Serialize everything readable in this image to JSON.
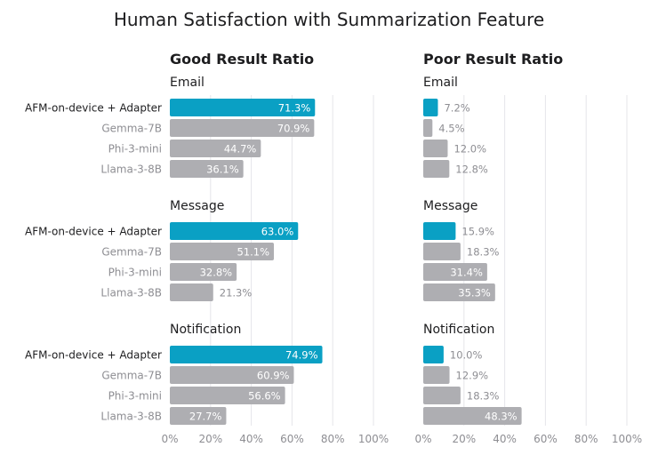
{
  "chart_data": {
    "type": "bar",
    "title": "Human Satisfaction with Summarization Feature",
    "categories": [
      "AFM-on-device + Adapter",
      "Gemma-7B",
      "Phi-3-mini",
      "Llama-3-8B"
    ],
    "highlight_category": "AFM-on-device + Adapter",
    "highlight_color": "#0aa0c4",
    "bar_color": "#aeaeb2",
    "xlim": [
      0,
      100
    ],
    "xticks": [
      "0%",
      "20%",
      "40%",
      "60%",
      "80%",
      "100%"
    ],
    "panels": [
      {
        "title": "Good Result Ratio",
        "sections": [
          {
            "name": "Email",
            "values": [
              71.3,
              70.9,
              44.7,
              36.1
            ],
            "labels": [
              "71.3%",
              "70.9%",
              "44.7%",
              "36.1%"
            ]
          },
          {
            "name": "Message",
            "values": [
              63.0,
              51.1,
              32.8,
              21.3
            ],
            "labels": [
              "63.0%",
              "51.1%",
              "32.8%",
              "21.3%"
            ]
          },
          {
            "name": "Notification",
            "values": [
              74.9,
              60.9,
              56.6,
              27.7
            ],
            "labels": [
              "74.9%",
              "60.9%",
              "56.6%",
              "27.7%"
            ]
          }
        ]
      },
      {
        "title": "Poor Result Ratio",
        "sections": [
          {
            "name": "Email",
            "values": [
              7.2,
              4.5,
              12.0,
              12.8
            ],
            "labels": [
              "7.2%",
              "4.5%",
              "12.0%",
              "12.8%"
            ]
          },
          {
            "name": "Message",
            "values": [
              15.9,
              18.3,
              31.4,
              35.3
            ],
            "labels": [
              "15.9%",
              "18.3%",
              "31.4%",
              "35.3%"
            ]
          },
          {
            "name": "Notification",
            "values": [
              10.0,
              12.9,
              18.3,
              48.3
            ],
            "labels": [
              "10.0%",
              "12.9%",
              "18.3%",
              "48.3%"
            ]
          }
        ]
      }
    ]
  }
}
